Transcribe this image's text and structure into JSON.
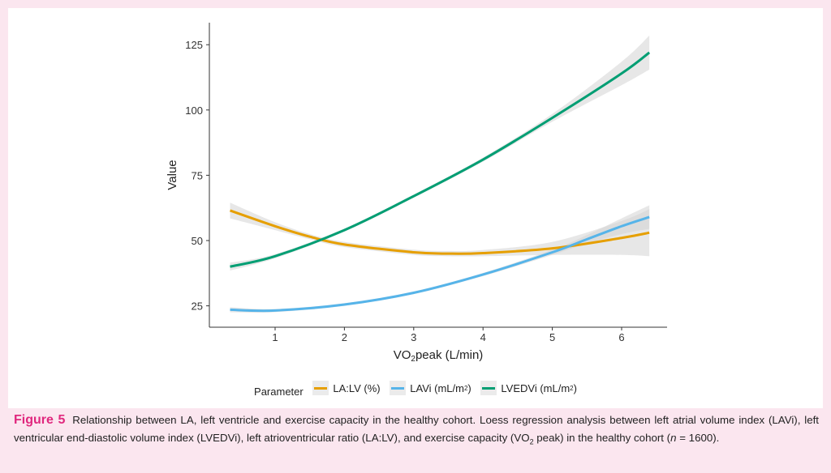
{
  "chart_data": {
    "type": "line",
    "xlabel_main": "VO",
    "xlabel_sub": "2",
    "xlabel_rest": "peak (L/min)",
    "ylabel": "Value",
    "xlim": [
      0,
      6.65
    ],
    "ylim": [
      17,
      134
    ],
    "xticks": [
      1,
      2,
      3,
      4,
      5,
      6
    ],
    "yticks": [
      25,
      50,
      75,
      100,
      125
    ],
    "grid": false,
    "legend_position": "bottom",
    "legend_title": "Parameter",
    "series": [
      {
        "name": "LA:LV (%)",
        "color": "#e69f00",
        "x": [
          0.35,
          1,
          1.5,
          2,
          3,
          3.5,
          4,
          5,
          6,
          6.4
        ],
        "y": [
          61.5,
          55.5,
          51.5,
          48.5,
          45.5,
          45,
          45.2,
          47,
          51,
          53
        ],
        "ci": [
          3,
          1.5,
          1,
          1,
          1,
          1,
          1.2,
          2.5,
          6.5,
          9
        ]
      },
      {
        "name": "LAVi (mL/m2)",
        "color": "#56b4e9",
        "x": [
          0.35,
          1,
          2,
          3,
          4,
          5,
          5.5,
          6,
          6.4
        ],
        "y": [
          23.5,
          23.2,
          25.5,
          30,
          37,
          45.5,
          50.5,
          55.5,
          59
        ],
        "ci": [
          1,
          0.6,
          0.5,
          0.5,
          0.6,
          1,
          1.6,
          3,
          4.5
        ]
      },
      {
        "name": "LVEDVi (mL/m2)",
        "color": "#009e73",
        "x": [
          0.35,
          1,
          2,
          3,
          4,
          5,
          6,
          6.4
        ],
        "y": [
          40,
          44,
          54,
          67,
          81,
          97,
          114,
          122
        ],
        "ci": [
          1.5,
          0.8,
          0.6,
          0.6,
          0.8,
          1.5,
          4.5,
          6.5
        ]
      }
    ]
  },
  "legend": {
    "title": "Parameter",
    "items": [
      {
        "label": "LA:LV (%)",
        "sup": ""
      },
      {
        "label": "LAVi (mL/m",
        "sup": "2",
        "close": ")"
      },
      {
        "label": "LVEDVi (mL/m",
        "sup": "2",
        "close": ")"
      }
    ]
  },
  "caption": {
    "label": "Figure 5",
    "text_1": "Relationship between LA, left ventricle and exercise capacity in the healthy cohort. Loess regression analysis between left atrial volume index (LAVi), left ventricular end-diastolic volume index (LVEDVi), left atrioventricular ratio (LA:LV), and exercise capacity (VO",
    "sub": "2",
    "text_2": " peak) in the healthy cohort (",
    "n_italic": "n",
    "text_3": " = 1600)."
  }
}
